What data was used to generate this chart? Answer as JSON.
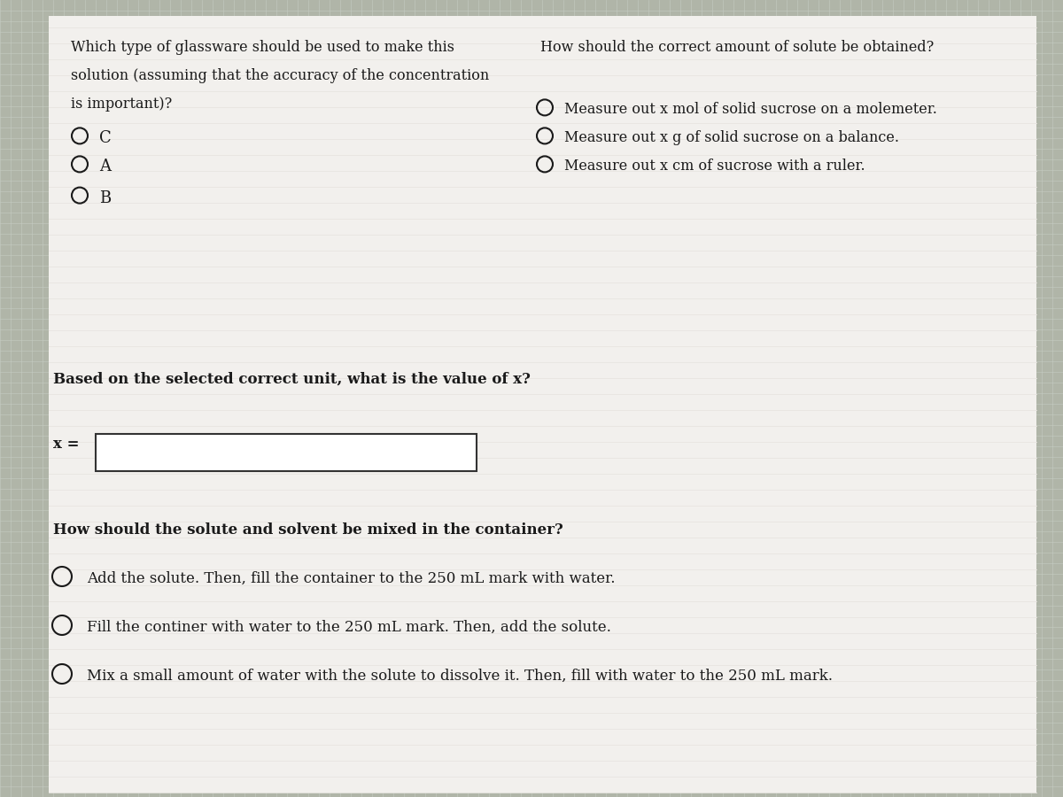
{
  "bg_color": "#b0b5a8",
  "panel_color": "#f0eeeb",
  "grid_color": "#c8cfc5",
  "text_color": "#1a1a1a",
  "title_left_line1": "Which type of glassware should be used to make this",
  "title_left_line2": "solution (assuming that the accuracy of the concentration",
  "title_left_line3": "is important)?",
  "options_left": [
    "C",
    "A",
    "B"
  ],
  "title_right": "How should the correct amount of solute be obtained?",
  "options_right": [
    "Measure out x mol of solid sucrose on a molemeter.",
    "Measure out x g of solid sucrose on a balance.",
    "Measure out x cm of sucrose with a ruler."
  ],
  "section2_label": "Based on the selected correct unit, what is the value of x?",
  "input_label": "x =",
  "section3_label": "How should the solute and solvent be mixed in the container?",
  "options_bottom": [
    "Add the solute. Then, fill the container to the 250 mL mark with water.",
    "Fill the continer with water to the 250 mL mark. Then, add the solute.",
    "Mix a small amount of water with the solute to dissolve it. Then, fill with water to the 250 mL mark."
  ]
}
